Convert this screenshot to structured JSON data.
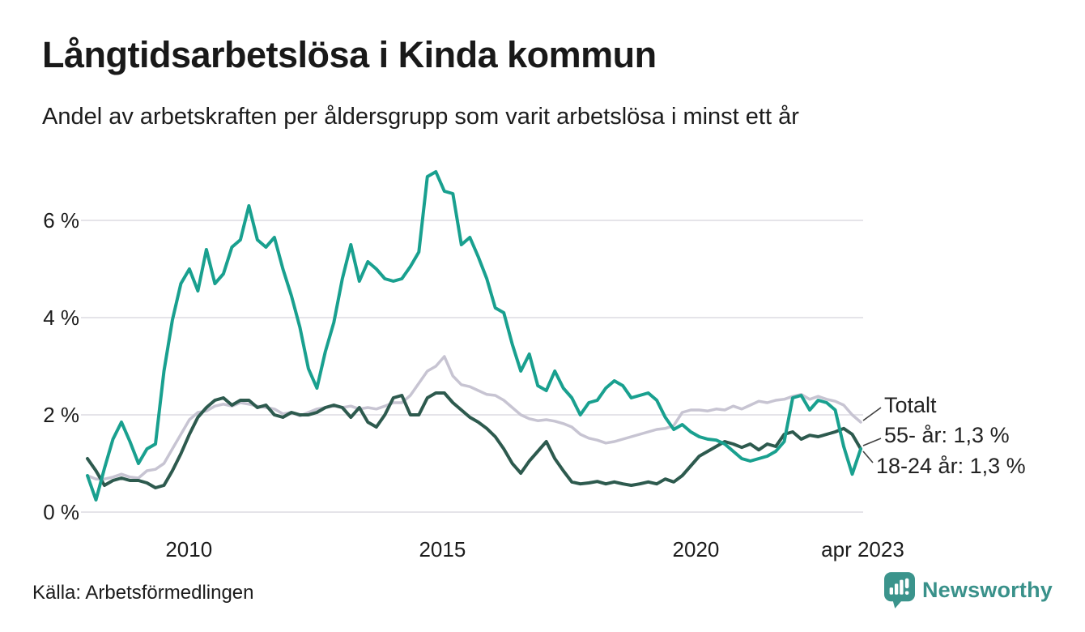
{
  "header": {
    "title": "Långtidsarbetslösa i Kinda kommun",
    "subtitle": "Andel av arbetskraften per åldersgrupp som varit arbetslösa i minst ett år"
  },
  "footer": {
    "source": "Källa: Arbetsförmedlingen",
    "brand_wordmark": "Newsworthy"
  },
  "colors": {
    "teal_series": "#19a08f",
    "dark_green_series": "#2d5a4e",
    "gray_series": "#c7c4d2",
    "gridline": "#e5e4e9",
    "leader_line": "#404040",
    "brand_teal": "#3b948c",
    "text": "#1c1c1c"
  },
  "chart_data": {
    "type": "line",
    "title": "Långtidsarbetslösa i Kinda kommun",
    "subtitle": "Andel av arbetskraften per åldersgrupp som varit arbetslösa i minst ett år",
    "source": "Källa: Arbetsförmedlingen",
    "x_start": 2008,
    "x_end": 2023.25,
    "ylim": [
      0,
      7.2
    ],
    "grid": true,
    "y_ticks": [
      {
        "value": 0,
        "label": "0 %"
      },
      {
        "value": 2,
        "label": "2 %"
      },
      {
        "value": 4,
        "label": "4 %"
      },
      {
        "value": 6,
        "label": "6 %"
      }
    ],
    "x_ticks": [
      {
        "value": 2010,
        "label": "2010"
      },
      {
        "value": 2015,
        "label": "2015"
      },
      {
        "value": 2020,
        "label": "2020"
      },
      {
        "value": 2023.29,
        "label": "apr 2023"
      }
    ],
    "series": [
      {
        "name": "Totalt",
        "color": "#c7c4d2",
        "stroke_width": 3.5,
        "values": [
          0.75,
          0.68,
          0.68,
          0.72,
          0.78,
          0.72,
          0.7,
          0.85,
          0.88,
          1.0,
          1.3,
          1.6,
          1.9,
          2.05,
          2.08,
          2.18,
          2.22,
          2.18,
          2.25,
          2.22,
          2.18,
          2.15,
          2.12,
          2.02,
          2.05,
          1.98,
          2.05,
          2.12,
          2.15,
          2.18,
          2.15,
          2.18,
          2.12,
          2.15,
          2.12,
          2.18,
          2.25,
          2.25,
          2.4,
          2.65,
          2.9,
          3.0,
          3.2,
          2.8,
          2.62,
          2.58,
          2.5,
          2.42,
          2.4,
          2.3,
          2.15,
          2.0,
          1.92,
          1.88,
          1.9,
          1.87,
          1.82,
          1.75,
          1.6,
          1.52,
          1.48,
          1.42,
          1.45,
          1.5,
          1.55,
          1.6,
          1.65,
          1.7,
          1.72,
          1.78,
          2.05,
          2.1,
          2.1,
          2.08,
          2.12,
          2.1,
          2.18,
          2.12,
          2.2,
          2.28,
          2.25,
          2.3,
          2.32,
          2.38,
          2.42,
          2.32,
          2.38,
          2.32,
          2.28,
          2.2,
          2.0,
          1.85
        ]
      },
      {
        "name": "55- år",
        "color": "#2d5a4e",
        "stroke_width": 4,
        "values": [
          1.1,
          0.85,
          0.55,
          0.65,
          0.7,
          0.65,
          0.65,
          0.6,
          0.5,
          0.55,
          0.85,
          1.2,
          1.6,
          1.95,
          2.15,
          2.3,
          2.35,
          2.2,
          2.3,
          2.3,
          2.15,
          2.2,
          2.0,
          1.95,
          2.05,
          2.0,
          2.0,
          2.05,
          2.15,
          2.2,
          2.15,
          1.95,
          2.15,
          1.85,
          1.75,
          2.0,
          2.35,
          2.4,
          2.0,
          2.0,
          2.35,
          2.45,
          2.45,
          2.25,
          2.1,
          1.95,
          1.85,
          1.72,
          1.55,
          1.3,
          1.0,
          0.8,
          1.05,
          1.25,
          1.45,
          1.1,
          0.85,
          0.62,
          0.58,
          0.6,
          0.63,
          0.58,
          0.62,
          0.58,
          0.55,
          0.58,
          0.62,
          0.58,
          0.68,
          0.62,
          0.75,
          0.95,
          1.15,
          1.25,
          1.35,
          1.45,
          1.4,
          1.33,
          1.4,
          1.28,
          1.4,
          1.35,
          1.6,
          1.65,
          1.5,
          1.58,
          1.55,
          1.6,
          1.65,
          1.72,
          1.6,
          1.3
        ]
      },
      {
        "name": "18-24 år",
        "color": "#19a08f",
        "stroke_width": 4,
        "values": [
          0.75,
          0.25,
          0.9,
          1.5,
          1.85,
          1.45,
          1.0,
          1.3,
          1.4,
          2.9,
          3.95,
          4.7,
          5.0,
          4.55,
          5.4,
          4.7,
          4.9,
          5.45,
          5.6,
          6.3,
          5.6,
          5.45,
          5.65,
          5.0,
          4.45,
          3.8,
          2.95,
          2.55,
          3.3,
          3.9,
          4.8,
          5.5,
          4.75,
          5.15,
          5.0,
          4.8,
          4.75,
          4.8,
          5.05,
          5.35,
          6.9,
          7.0,
          6.6,
          6.55,
          5.5,
          5.65,
          5.25,
          4.8,
          4.2,
          4.1,
          3.45,
          2.9,
          3.25,
          2.6,
          2.5,
          2.9,
          2.55,
          2.35,
          2.0,
          2.25,
          2.3,
          2.55,
          2.7,
          2.6,
          2.35,
          2.4,
          2.45,
          2.3,
          1.95,
          1.7,
          1.8,
          1.65,
          1.55,
          1.5,
          1.48,
          1.4,
          1.25,
          1.1,
          1.05,
          1.1,
          1.15,
          1.25,
          1.45,
          2.35,
          2.4,
          2.1,
          2.3,
          2.25,
          2.1,
          1.35,
          0.78,
          1.3
        ]
      }
    ],
    "annotations": [
      {
        "label": "Totalt"
      },
      {
        "label": "55- år: 1,3 %"
      },
      {
        "label": "18-24 år: 1,3 %"
      }
    ],
    "legend_position": "right-annotations"
  }
}
